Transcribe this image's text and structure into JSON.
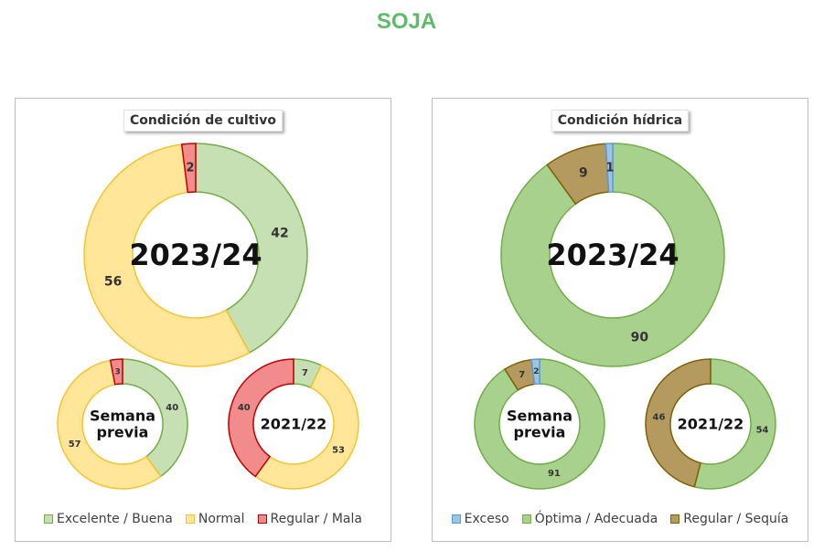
{
  "title": "SOJA",
  "colors": {
    "excelente_buena": {
      "fill": "#c6e0b4",
      "stroke": "#70ad47"
    },
    "normal": {
      "fill": "#ffe699",
      "stroke": "#f4c430"
    },
    "regular_mala": {
      "fill": "#f28b8b",
      "stroke": "#c00000"
    },
    "exceso": {
      "fill": "#9dc3e6",
      "stroke": "#5b9bd5"
    },
    "optima": {
      "fill": "#a9d18e",
      "stroke": "#70ad47"
    },
    "sequia": {
      "fill": "#b49a5f",
      "stroke": "#7f6000"
    }
  },
  "chart_data": [
    {
      "type": "pie",
      "title": "Condición  de cultivo",
      "legend": [
        "Excelente / Buena",
        "Normal",
        "Regular / Mala"
      ],
      "legend_colors": [
        "excelente_buena",
        "normal",
        "regular_mala"
      ],
      "rings": [
        {
          "center_label": "2023/24",
          "categories": [
            "Excelente / Buena",
            "Normal",
            "Regular / Mala"
          ],
          "values": [
            42,
            56,
            2
          ]
        },
        {
          "center_label": "Semana previa",
          "categories": [
            "Excelente / Buena",
            "Normal",
            "Regular / Mala"
          ],
          "values": [
            40,
            57,
            3
          ]
        },
        {
          "center_label": "2021/22",
          "categories": [
            "Excelente / Buena",
            "Normal",
            "Regular / Mala"
          ],
          "values": [
            7,
            53,
            40
          ]
        }
      ]
    },
    {
      "type": "pie",
      "title": "Condición  hídrica",
      "legend": [
        "Exceso",
        "Óptima / Adecuada",
        "Regular / Sequía"
      ],
      "legend_colors": [
        "exceso",
        "optima",
        "sequia"
      ],
      "rings": [
        {
          "center_label": "2023/24",
          "categories": [
            "Exceso",
            "Óptima / Adecuada",
            "Regular / Sequía"
          ],
          "values": [
            1,
            90,
            9
          ]
        },
        {
          "center_label": "Semana previa",
          "categories": [
            "Exceso",
            "Óptima / Adecuada",
            "Regular / Sequía"
          ],
          "values": [
            2,
            91,
            7
          ]
        },
        {
          "center_label": "2021/22",
          "categories": [
            "Exceso",
            "Óptima / Adecuada",
            "Regular / Sequía"
          ],
          "values": [
            0,
            54,
            46
          ]
        }
      ]
    }
  ]
}
